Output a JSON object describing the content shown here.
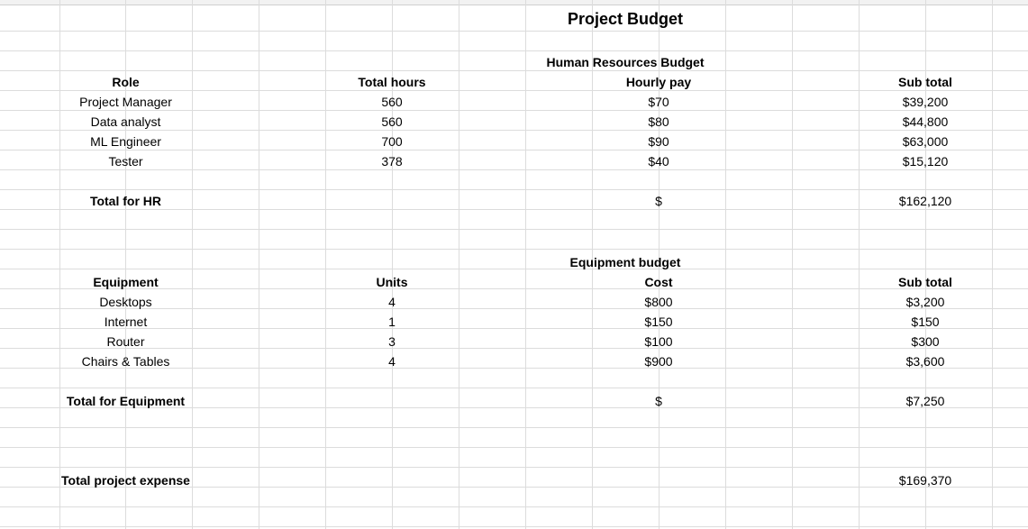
{
  "sheet": {
    "title": "Project Budget",
    "hr": {
      "section_title": "Human Resources Budget",
      "headers": {
        "role": "Role",
        "total_hours": "Total hours",
        "hourly_pay": "Hourly pay",
        "sub_total": "Sub total"
      },
      "rows": [
        {
          "role": "Project Manager",
          "hours": "560",
          "pay": "$70",
          "subtotal": "$39,200"
        },
        {
          "role": "Data analyst",
          "hours": "560",
          "pay": "$80",
          "subtotal": "$44,800"
        },
        {
          "role": "ML Engineer",
          "hours": "700",
          "pay": "$90",
          "subtotal": "$63,000"
        },
        {
          "role": "Tester",
          "hours": "378",
          "pay": "$40",
          "subtotal": "$15,120"
        }
      ],
      "total_label": "Total for HR",
      "total_currency": "$",
      "total_value": "$162,120"
    },
    "equipment": {
      "section_title": "Equipment budget",
      "headers": {
        "equipment": "Equipment",
        "units": "Units",
        "cost": "Cost",
        "sub_total": "Sub total"
      },
      "rows": [
        {
          "item": "Desktops",
          "units": "4",
          "cost": "$800",
          "subtotal": "$3,200"
        },
        {
          "item": "Internet",
          "units": "1",
          "cost": "$150",
          "subtotal": "$150"
        },
        {
          "item": "Router",
          "units": "3",
          "cost": "$100",
          "subtotal": "$300"
        },
        {
          "item": "Chairs & Tables",
          "units": "4",
          "cost": "$900",
          "subtotal": "$3,600"
        }
      ],
      "total_label": "Total for Equipment",
      "total_currency": "$",
      "total_value": "$7,250"
    },
    "grand_total_label": "Total project expense",
    "grand_total_value": "$169,370"
  }
}
